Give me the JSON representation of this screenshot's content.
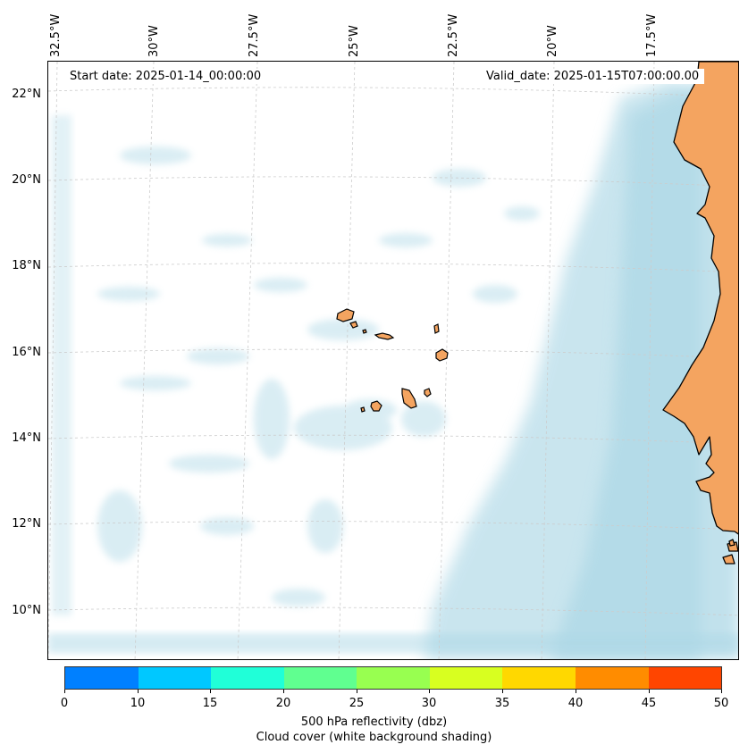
{
  "map": {
    "start_date": "Start date: 2025-01-14_00:00:00",
    "valid_date": "Valid_date: 2025-01-15T07:00:00.00",
    "lon_labels": [
      "32.5°W",
      "30°W",
      "27.5°W",
      "25°W",
      "22.5°W",
      "20°W",
      "17.5°W"
    ],
    "lat_labels": [
      "22°N",
      "20°N",
      "18°N",
      "16°N",
      "14°N",
      "12°N",
      "10°N"
    ],
    "colors": {
      "land": "#f4a460",
      "cloud": "#add8e6",
      "coastline": "#000000",
      "gridline": "#cccccc"
    }
  },
  "colorbar": {
    "ticks": [
      "0",
      "10",
      "15",
      "20",
      "25",
      "30",
      "35",
      "40",
      "45",
      "50"
    ],
    "colors": [
      "#0080ff",
      "#00c8ff",
      "#20ffd8",
      "#60ff90",
      "#98ff50",
      "#d8ff20",
      "#ffd800",
      "#ff8c00",
      "#ff4500"
    ],
    "label_line1": "500 hPa reflectivity (dbz)",
    "label_line2": "Cloud cover (white background shading)"
  }
}
